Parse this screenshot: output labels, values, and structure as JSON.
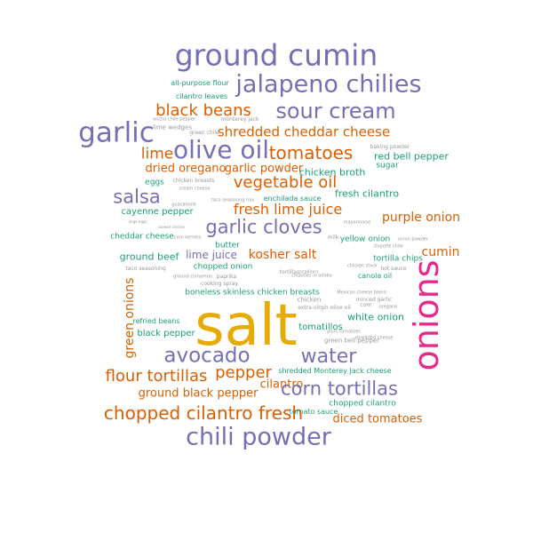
{
  "colors": {
    "purple": "#7570b3",
    "orange": "#d95f02",
    "gold": "#e6ab02",
    "green": "#1b9e77",
    "magenta": "#e7298a",
    "grey": "#999999"
  },
  "words": [
    {
      "text": "salt",
      "color": "gold"
    },
    {
      "text": "onions",
      "color": "magenta"
    },
    {
      "text": "ground cumin",
      "color": "purple"
    },
    {
      "text": "jalapeno chilies",
      "color": "purple"
    },
    {
      "text": "sour cream",
      "color": "purple"
    },
    {
      "text": "garlic",
      "color": "purple"
    },
    {
      "text": "olive oil",
      "color": "purple"
    },
    {
      "text": "black beans",
      "color": "orange"
    },
    {
      "text": "shredded cheddar cheese",
      "color": "orange"
    },
    {
      "text": "tomatoes",
      "color": "orange"
    },
    {
      "text": "lime",
      "color": "orange"
    },
    {
      "text": "dried oregano",
      "color": "orange"
    },
    {
      "text": "garlic powder",
      "color": "orange"
    },
    {
      "text": "vegetable oil",
      "color": "orange"
    },
    {
      "text": "salsa",
      "color": "purple"
    },
    {
      "text": "fresh lime juice",
      "color": "orange"
    },
    {
      "text": "garlic cloves",
      "color": "purple"
    },
    {
      "text": "purple onion",
      "color": "orange"
    },
    {
      "text": "cumin",
      "color": "orange"
    },
    {
      "text": "avocado",
      "color": "purple"
    },
    {
      "text": "water",
      "color": "purple"
    },
    {
      "text": "flour tortillas",
      "color": "orange"
    },
    {
      "text": "pepper",
      "color": "orange"
    },
    {
      "text": "cilantro",
      "color": "orange"
    },
    {
      "text": "corn tortillas",
      "color": "purple"
    },
    {
      "text": "chopped cilantro fresh",
      "color": "orange"
    },
    {
      "text": "chili powder",
      "color": "purple"
    },
    {
      "text": "ground black pepper",
      "color": "orange"
    },
    {
      "text": "diced tomatoes",
      "color": "orange"
    },
    {
      "text": "green onions",
      "color": "orange"
    },
    {
      "text": "lime juice",
      "color": "purple"
    },
    {
      "text": "kosher salt",
      "color": "orange"
    },
    {
      "text": "ground beef",
      "color": "green"
    },
    {
      "text": "fresh cilantro",
      "color": "green"
    },
    {
      "text": "red bell pepper",
      "color": "green"
    },
    {
      "text": "chicken broth",
      "color": "green"
    },
    {
      "text": "sugar",
      "color": "green"
    },
    {
      "text": "white onion",
      "color": "green"
    },
    {
      "text": "cayenne pepper",
      "color": "green"
    },
    {
      "text": "eggs",
      "color": "green"
    },
    {
      "text": "butter",
      "color": "green"
    },
    {
      "text": "cheddar cheese",
      "color": "green"
    },
    {
      "text": "black pepper",
      "color": "green"
    },
    {
      "text": "tomatillos",
      "color": "green"
    },
    {
      "text": "yellow onion",
      "color": "green"
    },
    {
      "text": "canola oil",
      "color": "green"
    },
    {
      "text": "tortilla chips",
      "color": "green"
    },
    {
      "text": "chopped onion",
      "color": "green"
    },
    {
      "text": "boneless skinless chicken breasts",
      "color": "green"
    },
    {
      "text": "enchilada sauce",
      "color": "green"
    },
    {
      "text": "refried beans",
      "color": "green"
    },
    {
      "text": "shredded Monterey Jack cheese",
      "color": "green"
    },
    {
      "text": "chopped cilantro",
      "color": "green"
    },
    {
      "text": "tomato sauce",
      "color": "green"
    },
    {
      "text": "all-purpose flour",
      "color": "green"
    },
    {
      "text": "cilantro leaves",
      "color": "green"
    },
    {
      "text": "lime wedges",
      "color": "grey"
    },
    {
      "text": "green chile",
      "color": "grey"
    },
    {
      "text": "monterey jack",
      "color": "grey"
    },
    {
      "text": "ancho chile pepper",
      "color": "grey"
    },
    {
      "text": "chicken breasts",
      "color": "grey"
    },
    {
      "text": "cream cheese",
      "color": "grey"
    },
    {
      "text": "taco seasoning mix",
      "color": "grey"
    },
    {
      "text": "guacamole",
      "color": "grey"
    },
    {
      "text": "large eggs",
      "color": "grey"
    },
    {
      "text": "cooked chicken",
      "color": "grey"
    },
    {
      "text": "corn kernels",
      "color": "grey"
    },
    {
      "text": "paprika",
      "color": "grey"
    },
    {
      "text": "scallions",
      "color": "grey"
    },
    {
      "text": "taco seasoning",
      "color": "grey"
    },
    {
      "text": "cooking spray",
      "color": "grey"
    },
    {
      "text": "ground cinnamon",
      "color": "grey"
    },
    {
      "text": "chipotles in adobo",
      "color": "grey"
    },
    {
      "text": "chicken",
      "color": "grey"
    },
    {
      "text": "Mexican cheese blend",
      "color": "grey"
    },
    {
      "text": "minced garlic",
      "color": "grey"
    },
    {
      "text": "extra-virgin olive oil",
      "color": "grey"
    },
    {
      "text": "corn",
      "color": "grey"
    },
    {
      "text": "green bell pepper",
      "color": "grey"
    },
    {
      "text": "shredded cheese",
      "color": "grey"
    },
    {
      "text": "baking powder",
      "color": "grey"
    },
    {
      "text": "chipotle chile",
      "color": "grey"
    },
    {
      "text": "hot sauce",
      "color": "grey"
    },
    {
      "text": "onion powder",
      "color": "grey"
    },
    {
      "text": "chicken stock",
      "color": "grey"
    },
    {
      "text": "oregano",
      "color": "grey"
    },
    {
      "text": "tortillas",
      "color": "grey"
    },
    {
      "text": "mayonnaise",
      "color": "grey"
    },
    {
      "text": "milk",
      "color": "grey"
    },
    {
      "text": "plum tomatoes",
      "color": "grey"
    }
  ]
}
